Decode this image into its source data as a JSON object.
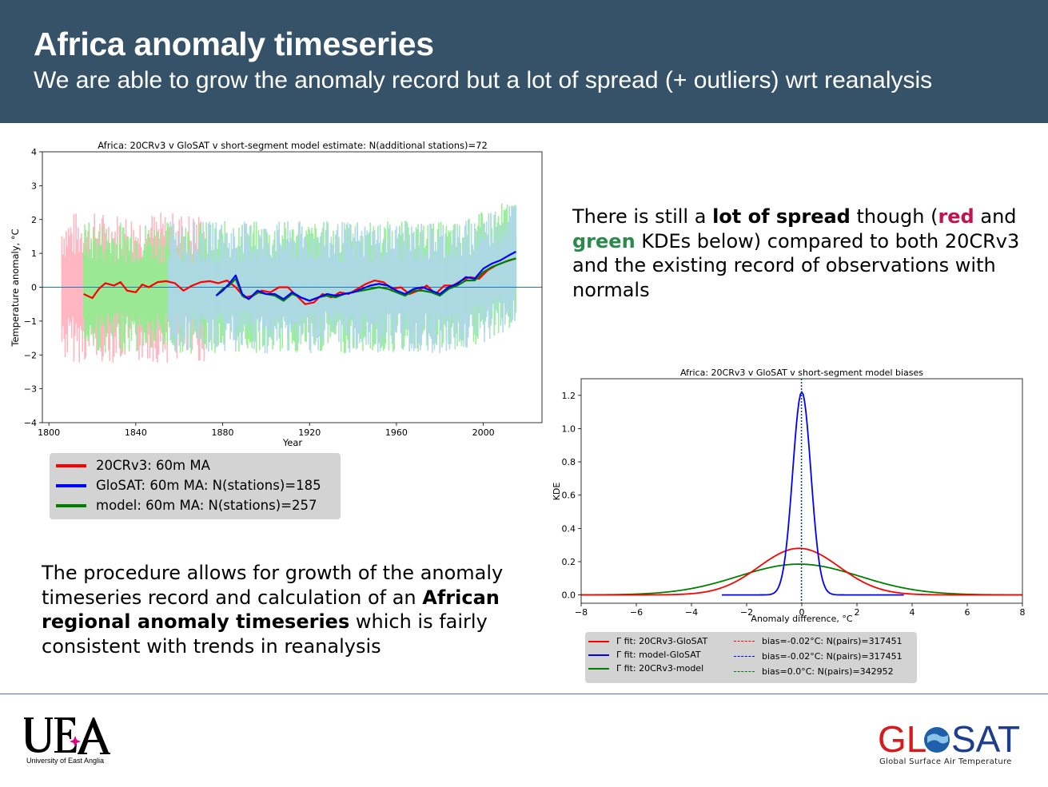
{
  "header": {
    "title": "Africa anomaly timeseries",
    "subtitle": "We are able to grow the anomaly record but a lot of spread (+ outliers) wrt reanalysis"
  },
  "right_text": {
    "p1": "There is still a ",
    "b1": "lot of spread",
    "p2": " though (",
    "red": "red",
    "p3": " and ",
    "green": "green",
    "p4": " KDEs below) compared to both 20CRv3 and the existing record of observations with normals"
  },
  "left_text": {
    "p1": "The procedure allows for growth of the anomaly timeseries record and calculation of an ",
    "b1": "African regional anomaly timeseries",
    "p2": " which is fairly consistent with trends in reanalysis"
  },
  "chart_data": [
    {
      "type": "line",
      "title": "Africa: 20CRv3 v GloSAT v short-segment model estimate: N(additional stations)=72",
      "xlabel": "Year",
      "ylabel": "Temperature anomaly, °C",
      "xlim": [
        1797,
        2027
      ],
      "ylim": [
        -4,
        4
      ],
      "xticks": [
        1800,
        1840,
        1880,
        1920,
        1960,
        2000
      ],
      "yticks": [
        -4,
        -3,
        -2,
        -1,
        0,
        1,
        2,
        3,
        4
      ],
      "xtick_labels": [
        "1800",
        "1840",
        "1880",
        "1920",
        "1960",
        "2000"
      ],
      "ytick_labels": [
        "−4",
        "−3",
        "−2",
        "−1",
        "0",
        "1",
        "2",
        "3",
        "4"
      ],
      "legend_position": "below",
      "colors": {
        "series1": "#ff0000",
        "series2": "#0000ff",
        "series3": "#008000",
        "band1": "#ffb6c1",
        "band2": "#90ee90",
        "band3": "#add8e6",
        "zero": "#1f77b4"
      },
      "series": [
        {
          "name": "20CRv3: 60m MA",
          "x": [
            1816,
            1820,
            1823,
            1826,
            1830,
            1833,
            1836,
            1840,
            1843,
            1846,
            1850,
            1854,
            1858,
            1862,
            1866,
            1870,
            1874,
            1878,
            1882,
            1886,
            1890,
            1894,
            1898,
            1902,
            1906,
            1910,
            1914,
            1918,
            1922,
            1926,
            1930,
            1934,
            1938,
            1942,
            1946,
            1950,
            1954,
            1958,
            1962,
            1966,
            1970,
            1974,
            1978,
            1982,
            1986,
            1990,
            1994,
            1998,
            2002,
            2006,
            2010,
            2015
          ],
          "y": [
            -0.2,
            -0.32,
            -0.05,
            0.12,
            0.05,
            0.15,
            -0.1,
            -0.15,
            0.08,
            0.0,
            0.15,
            0.18,
            0.12,
            -0.1,
            0.05,
            0.15,
            0.18,
            0.12,
            0.2,
            0.0,
            -0.3,
            -0.25,
            -0.1,
            -0.15,
            0.0,
            0.0,
            -0.25,
            -0.5,
            -0.45,
            -0.2,
            -0.3,
            -0.15,
            -0.2,
            -0.05,
            0.1,
            0.2,
            0.15,
            -0.05,
            0.0,
            -0.2,
            -0.1,
            0.05,
            -0.2,
            0.05,
            0.05,
            0.2,
            0.3,
            0.25,
            0.5,
            0.65,
            0.75,
            0.85
          ]
        },
        {
          "name": "GloSAT: 60m MA: N(stations)=185",
          "x": [
            1877,
            1880,
            1883,
            1886,
            1889,
            1892,
            1896,
            1900,
            1904,
            1908,
            1912,
            1916,
            1920,
            1924,
            1928,
            1932,
            1936,
            1940,
            1944,
            1948,
            1952,
            1956,
            1960,
            1964,
            1968,
            1972,
            1976,
            1980,
            1984,
            1988,
            1992,
            1996,
            2000,
            2004,
            2008,
            2012,
            2015
          ],
          "y": [
            -0.25,
            -0.1,
            0.1,
            0.35,
            -0.2,
            -0.35,
            -0.1,
            -0.2,
            -0.2,
            -0.35,
            -0.15,
            -0.3,
            -0.4,
            -0.3,
            -0.2,
            -0.25,
            -0.2,
            -0.15,
            -0.05,
            0.05,
            0.1,
            0.05,
            -0.1,
            -0.2,
            -0.05,
            0.0,
            -0.1,
            -0.2,
            0.0,
            0.1,
            0.3,
            0.25,
            0.55,
            0.7,
            0.8,
            0.95,
            1.05
          ]
        },
        {
          "name": "model: 60m MA: N(stations)=257",
          "x": [
            1877,
            1880,
            1883,
            1886,
            1889,
            1892,
            1896,
            1900,
            1904,
            1908,
            1912,
            1916,
            1920,
            1924,
            1928,
            1932,
            1936,
            1940,
            1944,
            1948,
            1952,
            1956,
            1960,
            1964,
            1968,
            1972,
            1976,
            1980,
            1984,
            1988,
            1992,
            1996,
            2000,
            2004,
            2008,
            2012,
            2015
          ],
          "y": [
            -0.25,
            -0.05,
            0.05,
            0.25,
            -0.25,
            -0.35,
            -0.15,
            -0.2,
            -0.25,
            -0.4,
            -0.2,
            -0.3,
            -0.4,
            -0.3,
            -0.25,
            -0.3,
            -0.2,
            -0.15,
            -0.1,
            -0.05,
            0.0,
            -0.05,
            -0.15,
            -0.25,
            -0.1,
            -0.1,
            -0.15,
            -0.25,
            -0.05,
            0.05,
            0.2,
            0.2,
            0.45,
            0.6,
            0.7,
            0.8,
            0.85
          ]
        }
      ]
    },
    {
      "type": "line",
      "title": "Africa: 20CRv3 v GloSAT v short-segment model biases",
      "xlabel": "Anomaly difference, °C",
      "ylabel": "KDE",
      "xlim": [
        -8,
        8
      ],
      "ylim": [
        -0.05,
        1.3
      ],
      "xticks": [
        -8,
        -6,
        -4,
        -2,
        0,
        2,
        4,
        6,
        8
      ],
      "yticks": [
        0.0,
        0.2,
        0.4,
        0.6,
        0.8,
        1.0,
        1.2
      ],
      "xtick_labels": [
        "−8",
        "−6",
        "−4",
        "−2",
        "0",
        "2",
        "4",
        "6",
        "8"
      ],
      "ytick_labels": [
        "0.0",
        "0.2",
        "0.4",
        "0.6",
        "0.8",
        "1.0",
        "1.2"
      ],
      "legend_position": "below",
      "colors": {
        "series1": "#ff0000",
        "series2": "#0000ff",
        "series3": "#008000"
      },
      "series": [
        {
          "name": "Γ fit: 20CRv3-GloSAT",
          "center": -0.1,
          "sigma": 1.45,
          "peak": 0.28,
          "x_range": [
            -8,
            8
          ]
        },
        {
          "name": "Γ fit: model-GloSAT",
          "center": 0.0,
          "sigma": 0.33,
          "peak": 1.22,
          "x_range": [
            -2.9,
            3.7
          ]
        },
        {
          "name": "Γ fit: 20CRv3-model",
          "center": -0.1,
          "sigma": 2.2,
          "peak": 0.185,
          "x_range": [
            -8,
            8
          ]
        }
      ],
      "bias_lines": [
        {
          "label": "bias=-0.02°C: N(pairs)=317451",
          "x": -0.02
        },
        {
          "label": "bias=-0.02°C: N(pairs)=317451",
          "x": -0.02
        },
        {
          "label": "bias=0.0°C: N(pairs)=342952",
          "x": 0.0
        }
      ]
    }
  ],
  "logos": {
    "uea_caption": "University of East Anglia",
    "glosat_gl": "GL",
    "glosat_sat": "SAT",
    "glosat_caption": "Global Surface Air Temperature"
  }
}
